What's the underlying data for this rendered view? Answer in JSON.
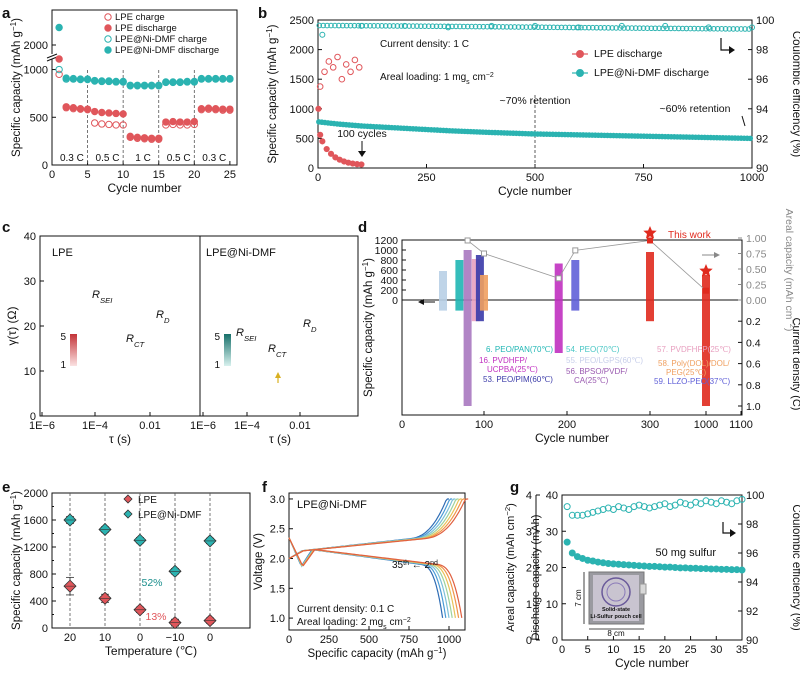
{
  "colors": {
    "lpe": "#e0565b",
    "lpe_light": "#f0a0a2",
    "ni": "#2bb3b1",
    "ni_dark": "#1a8e8c",
    "accent": "#e02a1e"
  },
  "chart_data": [
    {
      "panel": "a",
      "type": "scatter",
      "xlabel": "Cycle number",
      "ylabel": "Specific capacity (mAh g",
      "ylabel_sup": "−1",
      "ylabel_tail": ")",
      "xlim": [
        0,
        26
      ],
      "yticks_lower": [
        0,
        500,
        1000
      ],
      "yticks_upper": [
        2000
      ],
      "ybreak": [
        1100,
        1900
      ],
      "xticks": [
        0,
        5,
        10,
        15,
        20,
        25
      ],
      "rate_labels": [
        "0.3 C",
        "0.5 C",
        "1 C",
        "0.5 C",
        "0.3 C"
      ],
      "rate_bounds": [
        5,
        10,
        15,
        20,
        25
      ],
      "legend": [
        "LPE charge",
        "LPE discharge",
        "LPE@Ni-DMF charge",
        "LPE@Ni-DMF discharge"
      ],
      "series": [
        {
          "name": "LPE charge",
          "x": [
            1,
            2,
            3,
            4,
            5,
            6,
            7,
            8,
            9,
            10,
            11,
            12,
            13,
            14,
            15,
            16,
            17,
            18,
            19,
            20,
            21,
            22,
            23,
            24,
            25
          ],
          "y": [
            950,
            600,
            590,
            585,
            580,
            440,
            430,
            425,
            420,
            420,
            290,
            280,
            275,
            270,
            270,
            420,
            425,
            420,
            420,
            425,
            580,
            585,
            580,
            575,
            575
          ]
        },
        {
          "name": "LPE discharge",
          "x": [
            1,
            2,
            3,
            4,
            5,
            6,
            7,
            8,
            9,
            10,
            11,
            12,
            13,
            14,
            15,
            16,
            17,
            18,
            19,
            20,
            21,
            22,
            23,
            24,
            25
          ],
          "y": [
            1800,
            610,
            600,
            590,
            585,
            560,
            550,
            545,
            540,
            535,
            300,
            290,
            285,
            280,
            280,
            450,
            455,
            450,
            450,
            455,
            590,
            595,
            590,
            585,
            585
          ]
        },
        {
          "name": "LPE@Ni-DMF charge",
          "x": [
            1,
            2,
            3,
            4,
            5,
            6,
            7,
            8,
            9,
            10,
            11,
            12,
            13,
            14,
            15,
            16,
            17,
            18,
            19,
            20,
            21,
            22,
            23,
            24,
            25
          ],
          "y": [
            1000,
            900,
            900,
            895,
            895,
            880,
            875,
            875,
            870,
            870,
            830,
            830,
            830,
            830,
            830,
            865,
            865,
            865,
            870,
            870,
            900,
            900,
            900,
            900,
            900
          ]
        },
        {
          "name": "LPE@Ni-DMF discharge",
          "x": [
            1,
            2,
            3,
            4,
            5,
            6,
            7,
            8,
            9,
            10,
            11,
            12,
            13,
            14,
            15,
            16,
            17,
            18,
            19,
            20,
            21,
            22,
            23,
            24,
            25
          ],
          "y": [
            2250,
            910,
            905,
            900,
            900,
            885,
            880,
            880,
            875,
            875,
            835,
            835,
            835,
            835,
            835,
            870,
            870,
            870,
            875,
            875,
            905,
            905,
            905,
            905,
            905
          ]
        }
      ]
    },
    {
      "panel": "b",
      "type": "scatter",
      "xlabel": "Cycle number",
      "ylabel": "Specific capacity (mAh g",
      "ylabel_sup": "−1",
      "ylabel_tail": ")",
      "y2label": "Coulombic efficiency (%)",
      "xlim": [
        0,
        1000
      ],
      "ylim": [
        0,
        2500
      ],
      "y2lim": [
        90,
        100
      ],
      "xticks": [
        0,
        250,
        500,
        750,
        1000
      ],
      "yticks": [
        0,
        500,
        1000,
        1500,
        2000,
        2500
      ],
      "y2ticks": [
        90,
        92,
        94,
        96,
        98,
        100
      ],
      "legend": [
        "LPE discharge",
        "LPE@Ni-DMF discharge"
      ],
      "annotations": {
        "density": "Current density: 1 C",
        "loading": "Areal loading: 1 mg",
        "loading_sub": "s",
        "loading_unit": " cm",
        "loading_sup": "−2",
        "ret70": "~70% retention",
        "ret60": "~60% retention",
        "cycles100": "100 cycles"
      },
      "series": [
        {
          "name": "LPE discharge",
          "x": [
            1,
            5,
            10,
            20,
            30,
            40,
            50,
            60,
            70,
            80,
            90,
            100
          ],
          "y": [
            1000,
            560,
            450,
            320,
            240,
            180,
            140,
            110,
            90,
            75,
            65,
            60
          ]
        },
        {
          "name": "LPE@Ni-DMF discharge",
          "x": [
            1,
            25,
            50,
            100,
            200,
            300,
            400,
            500,
            600,
            700,
            800,
            900,
            1000
          ],
          "y": [
            780,
            760,
            740,
            710,
            670,
            630,
            600,
            575,
            560,
            545,
            530,
            515,
            500
          ]
        },
        {
          "name": "LPE CE",
          "x": [
            5,
            15,
            25,
            35,
            45,
            55,
            65,
            75,
            85,
            95
          ],
          "y2": [
            95.5,
            96.5,
            97.2,
            96.8,
            97.5,
            96.0,
            97.0,
            96.5,
            97.3,
            96.8
          ]
        },
        {
          "name": "LPE@Ni-DMF CE",
          "x": [
            10,
            100,
            200,
            300,
            400,
            500,
            600,
            700,
            800,
            900,
            1000
          ],
          "y2": [
            99.0,
            99.6,
            99.6,
            99.5,
            99.6,
            99.6,
            99.5,
            99.6,
            99.6,
            99.5,
            99.5
          ]
        }
      ]
    },
    {
      "panel": "c",
      "type": "line",
      "xlabel": "τ (s)",
      "ylabel": "γ(τ) (Ω)",
      "ylim": [
        0,
        40
      ],
      "yticks": [
        0,
        10,
        20,
        30,
        40
      ],
      "xticks": [
        "1E−6",
        "1E−4",
        "0.01"
      ],
      "sub1": {
        "title": "LPE",
        "labels": [
          "R",
          "SEI",
          "R",
          "CT",
          "R",
          "D"
        ],
        "scale_top": "5",
        "scale_bottom": "1"
      },
      "sub2": {
        "title": "LPE@Ni-DMF",
        "labels": [
          "R",
          "SEI",
          "R",
          "CT",
          "R",
          "D"
        ],
        "scale_top": "5",
        "scale_bottom": "1"
      }
    },
    {
      "panel": "d",
      "type": "bar",
      "xlabel": "Cycle number",
      "ylabel": "Specific capacity (mAh g",
      "ylabel_sup": "−1",
      "ylabel_tail": ")",
      "y2label_top": "Areal capacity (mAh cm",
      "y2label_top_sup": "−2",
      "y2label_top_tail": ")",
      "y2label_bottom": "Current density (C)",
      "xticks": [
        "0",
        "100",
        "200",
        "300",
        "1000",
        "1100"
      ],
      "yticks": [
        0,
        200,
        400,
        600,
        800,
        1000,
        1200
      ],
      "y2ticks_top": [
        0.0,
        0.25,
        0.5,
        0.75,
        1.0
      ],
      "y2ticks_bottom": [
        0.2,
        0.4,
        0.6,
        0.8,
        1.0
      ],
      "this_work": "This work",
      "legend": [
        {
          "label": "6. PEO/PAN(70℃)",
          "color": "#1fb6b4"
        },
        {
          "label": "16. PVDHFP/ UCPBA(25℃)",
          "color": "#c030c0"
        },
        {
          "label": "53. PEO/PIM(60℃)",
          "color": "#3a3aa8"
        },
        {
          "label": "54. PEO(70℃)",
          "color": "#47c6c4"
        },
        {
          "label": "55. PEO/LGPS(60℃)",
          "color": "#c8cfea"
        },
        {
          "label": "56. BPSO/PVDF/ CA(25℃)",
          "color": "#9a5ab0"
        },
        {
          "label": "57. PVDFHFP(25℃)",
          "color": "#e8a0c0"
        },
        {
          "label": "58. Poly(DOL)/DOL/ PEG(25℃)",
          "color": "#f0a060"
        },
        {
          "label": "59. LLZO-PEO(37℃)",
          "color": "#6060d8"
        }
      ],
      "bars": [
        {
          "cycle": 50,
          "capacity": 580,
          "current": 0.1,
          "color": "#b8cfe6"
        },
        {
          "cycle": 70,
          "capacity": 800,
          "current": 0.1,
          "color": "#1fb6b4"
        },
        {
          "cycle": 80,
          "capacity": 1000,
          "current": 1.0,
          "color": "#a878c0"
        },
        {
          "cycle": 90,
          "capacity": 820,
          "current": 0.2,
          "color": "#e8a0c0"
        },
        {
          "cycle": 95,
          "capacity": 900,
          "current": 0.2,
          "color": "#3a3aa8"
        },
        {
          "cycle": 100,
          "capacity": 500,
          "current": 0.1,
          "color": "#f0a060"
        },
        {
          "cycle": 190,
          "capacity": 730,
          "current": 0.5,
          "color": "#c030c0"
        },
        {
          "cycle": 210,
          "capacity": 800,
          "current": 0.1,
          "color": "#6060d8"
        },
        {
          "cycle": 300,
          "capacity": 960,
          "current": 0.2,
          "color": "#e02a1e"
        },
        {
          "cycle": 1000,
          "capacity": 500,
          "current": 1.0,
          "color": "#e02a1e"
        }
      ]
    },
    {
      "panel": "e",
      "type": "scatter",
      "xlabel": "Temperature  (℃)",
      "ylabel": "Specific capacity (mAh g",
      "ylabel_sup": "−1",
      "ylabel_tail": ")",
      "categories": [
        "20",
        "10",
        "0",
        "−10",
        "0"
      ],
      "ylim": [
        0,
        2000
      ],
      "yticks": [
        0,
        400,
        800,
        1200,
        1600,
        2000
      ],
      "yticks_half": [
        200,
        600,
        1000,
        1400,
        1800
      ],
      "legend": [
        "LPE",
        "LPE@Ni-DMF"
      ],
      "labels": {
        "ni_pct": "52%",
        "lpe_pct": "13%"
      },
      "series": [
        {
          "name": "LPE",
          "values": [
            620,
            440,
            270,
            80,
            110
          ]
        },
        {
          "name": "LPE@Ni-DMF",
          "values": [
            1600,
            1460,
            1300,
            840,
            1290
          ]
        }
      ]
    },
    {
      "panel": "f",
      "type": "line",
      "title": "LPE@Ni-DMF",
      "xlabel": "Specific capacity (mAh g",
      "xlabel_sup": "−1",
      "xlabel_tail": ")",
      "ylabel": "Voltage (V)",
      "xlim": [
        0,
        1100
      ],
      "ylim": [
        0.8,
        3.1
      ],
      "xticks": [
        0,
        250,
        500,
        750,
        1000
      ],
      "yticks": [
        1.0,
        1.5,
        2.0,
        2.5,
        3.0
      ],
      "annotations": {
        "cycle_from": "35",
        "cycle_from_sup": "th",
        "cycle_to": "2",
        "cycle_to_sup": "nd",
        "arrow": "←",
        "density": "Current density: 0.1 C",
        "loading": "Areal loading: 2 mg",
        "loading_sub": "s",
        "loading_unit": " cm",
        "loading_sup": "−2"
      }
    },
    {
      "panel": "g",
      "type": "scatter",
      "xlabel": "Cycle number",
      "ylabel": "Discharge capacity (mAh)",
      "ylabel_outer": "Areal capacity (mAh cm",
      "ylabel_outer_sup": "−2",
      "ylabel_outer_tail": ")",
      "y2label": "Coulombic efficiency (%)",
      "xlim": [
        0,
        35
      ],
      "xticks": [
        0,
        5,
        10,
        15,
        20,
        25,
        30,
        35
      ],
      "yticks": [
        0,
        10,
        20,
        30,
        40
      ],
      "yticks_outer": [
        0,
        1,
        2,
        3,
        4
      ],
      "y2ticks": [
        90,
        92,
        94,
        96,
        98,
        100
      ],
      "annotations": {
        "sulfur": "50 mg sulfur",
        "inset1": "Solid-state",
        "inset2": "Li-Sulfur pouch cell",
        "w": "8 cm",
        "h": "7 cm"
      },
      "series": [
        {
          "name": "Discharge capacity",
          "x": [
            1,
            2,
            3,
            4,
            5,
            6,
            7,
            8,
            9,
            10,
            11,
            12,
            13,
            14,
            15,
            16,
            17,
            18,
            19,
            20,
            21,
            22,
            23,
            24,
            25,
            26,
            27,
            28,
            29,
            30,
            31,
            32,
            33,
            34,
            35
          ],
          "y": [
            27,
            24,
            23,
            22.5,
            22,
            21.8,
            21.5,
            21.3,
            21.1,
            21,
            20.9,
            20.8,
            20.7,
            20.6,
            20.5,
            20.4,
            20.3,
            20.3,
            20.2,
            20.1,
            20.1,
            20,
            19.9,
            19.9,
            19.8,
            19.8,
            19.7,
            19.7,
            19.6,
            19.6,
            19.5,
            19.5,
            19.4,
            19.4,
            19.3
          ]
        },
        {
          "name": "CE",
          "x": [
            1,
            2,
            3,
            4,
            5,
            6,
            7,
            8,
            9,
            10,
            11,
            12,
            13,
            14,
            15,
            16,
            17,
            18,
            19,
            20,
            21,
            22,
            23,
            24,
            25,
            26,
            27,
            28,
            29,
            30,
            31,
            32,
            33,
            34,
            35
          ],
          "y2": [
            99.2,
            98.6,
            98.6,
            98.6,
            98.7,
            98.8,
            98.9,
            99.0,
            99.1,
            99.0,
            99.2,
            99.1,
            99.0,
            99.2,
            99.3,
            99.2,
            99.1,
            99.2,
            99.3,
            99.4,
            99.2,
            99.3,
            99.5,
            99.4,
            99.3,
            99.5,
            99.4,
            99.6,
            99.5,
            99.4,
            99.6,
            99.5,
            99.4,
            99.6,
            99.7
          ]
        }
      ]
    }
  ],
  "panel_letters": [
    "a",
    "b",
    "c",
    "d",
    "e",
    "f",
    "g"
  ]
}
